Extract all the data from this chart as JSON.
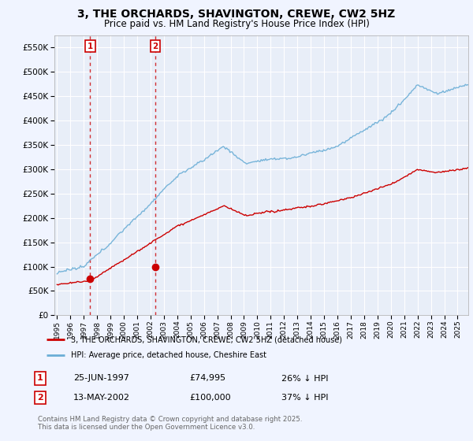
{
  "title": "3, THE ORCHARDS, SHAVINGTON, CREWE, CW2 5HZ",
  "subtitle": "Price paid vs. HM Land Registry's House Price Index (HPI)",
  "background_color": "#f0f4ff",
  "plot_bg_color": "#e8eef8",
  "grid_color": "#ffffff",
  "ylim": [
    0,
    575000
  ],
  "yticks": [
    0,
    50000,
    100000,
    150000,
    200000,
    250000,
    300000,
    350000,
    400000,
    450000,
    500000,
    550000
  ],
  "xlim_start": 1994.8,
  "xlim_end": 2025.8,
  "transaction1": {
    "date_num": 1997.48,
    "price": 74995,
    "label": "1"
  },
  "transaction2": {
    "date_num": 2002.36,
    "price": 100000,
    "label": "2"
  },
  "legend_line1": "3, THE ORCHARDS, SHAVINGTON, CREWE, CW2 5HZ (detached house)",
  "legend_line2": "HPI: Average price, detached house, Cheshire East",
  "annotation1_date": "25-JUN-1997",
  "annotation1_price": "£74,995",
  "annotation1_hpi": "26% ↓ HPI",
  "annotation2_date": "13-MAY-2002",
  "annotation2_price": "£100,000",
  "annotation2_hpi": "37% ↓ HPI",
  "footer": "Contains HM Land Registry data © Crown copyright and database right 2025.\nThis data is licensed under the Open Government Licence v3.0.",
  "hpi_line_color": "#6baed6",
  "price_line_color": "#cc0000",
  "marker_color": "#cc0000"
}
